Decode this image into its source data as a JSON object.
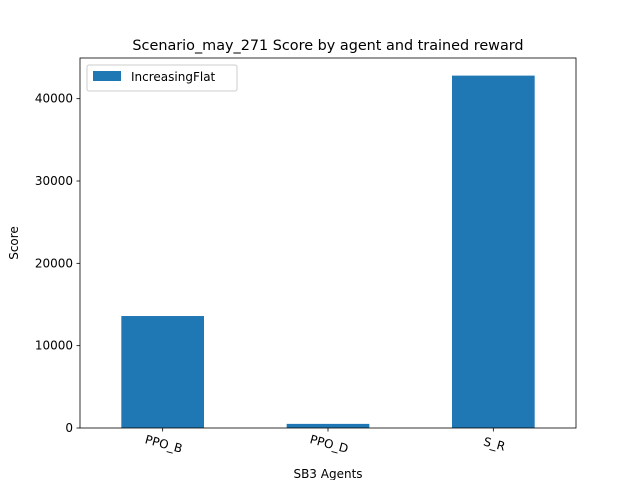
{
  "chart_data": {
    "type": "bar",
    "title": "Scenario_may_271 Score by agent and trained reward",
    "xlabel": "SB3 Agents",
    "ylabel": "Score",
    "categories": [
      "PPO_B",
      "PPO_D",
      "S_R"
    ],
    "series": [
      {
        "name": "IncreasingFlat",
        "values": [
          13600,
          500,
          42800
        ],
        "color": "#1f77b4"
      }
    ],
    "ylim": [
      0,
      44940
    ],
    "yticks": [
      0,
      10000,
      20000,
      30000,
      40000
    ],
    "ytick_labels": [
      "0",
      "10000",
      "20000",
      "30000",
      "40000"
    ],
    "grid": false,
    "legend_position": "top-left"
  }
}
